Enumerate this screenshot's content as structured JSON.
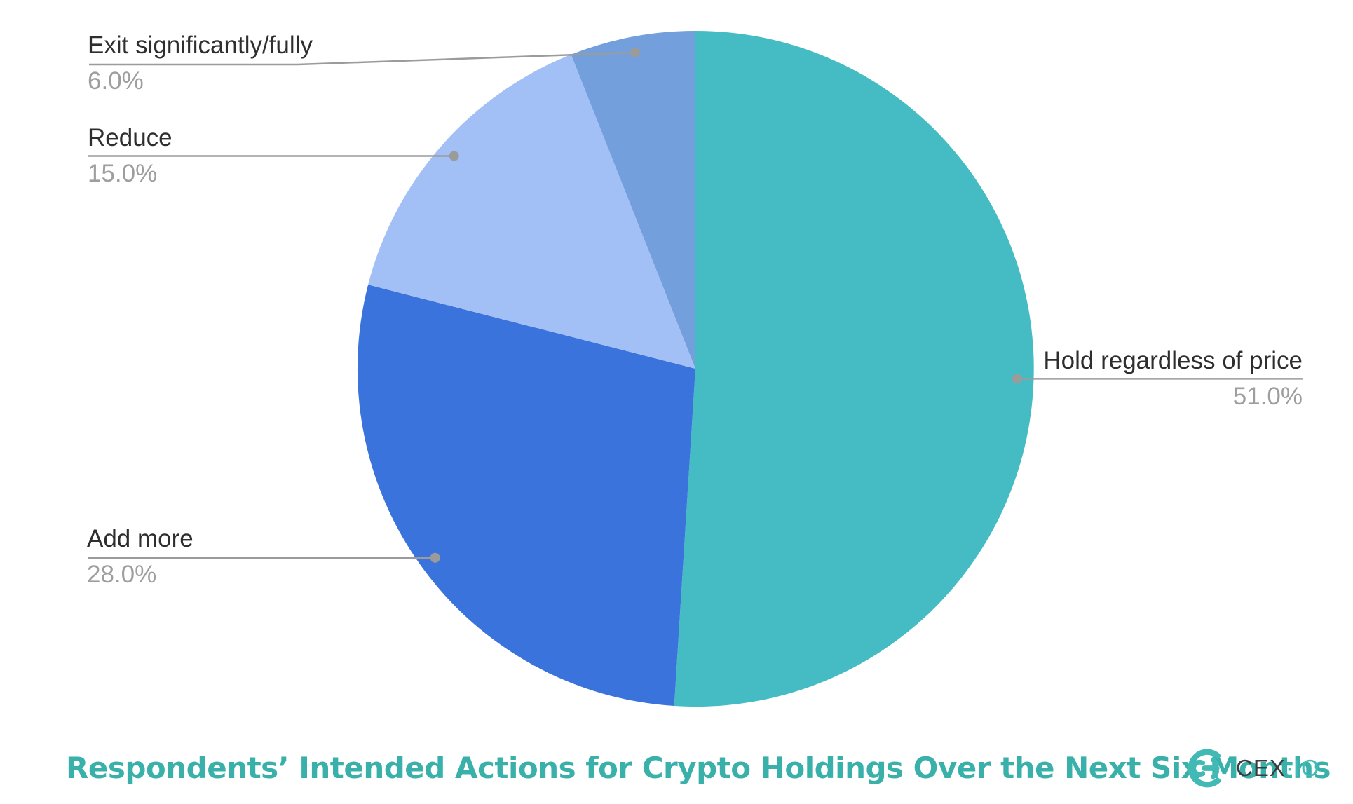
{
  "chart_data": {
    "type": "pie",
    "title": "Respondents’ Intended Actions for Crypto Holdings Over the Next Six Months",
    "start_angle_deg": 0,
    "direction": "clockwise",
    "legend_position": "none",
    "label_style": "outside-with-leader-lines",
    "slices": [
      {
        "label": "Hold regardless of price",
        "value": 51.0,
        "pct_label": "51.0%",
        "color": "#45BCC4"
      },
      {
        "label": "Add more",
        "value": 28.0,
        "pct_label": "28.0%",
        "color": "#3A73DB"
      },
      {
        "label": "Reduce",
        "value": 15.0,
        "pct_label": "15.0%",
        "color": "#A3C0F6"
      },
      {
        "label": "Exit significantly/fully",
        "value": 6.0,
        "pct_label": "6.0%",
        "color": "#73A0DC"
      }
    ]
  },
  "colors": {
    "background": "#FFFFFF",
    "label_text": "#2E2E2E",
    "pct_text": "#9E9E9E",
    "leader_line": "#9B9B9B",
    "title_text": "#39B1AA",
    "logo_dark": "#3C3C3C",
    "logo_teal": "#41B9B4"
  },
  "branding": {
    "logo_text": "CEX",
    "logo_suffix": "·IO",
    "logo_icon": "cexio-mark"
  }
}
